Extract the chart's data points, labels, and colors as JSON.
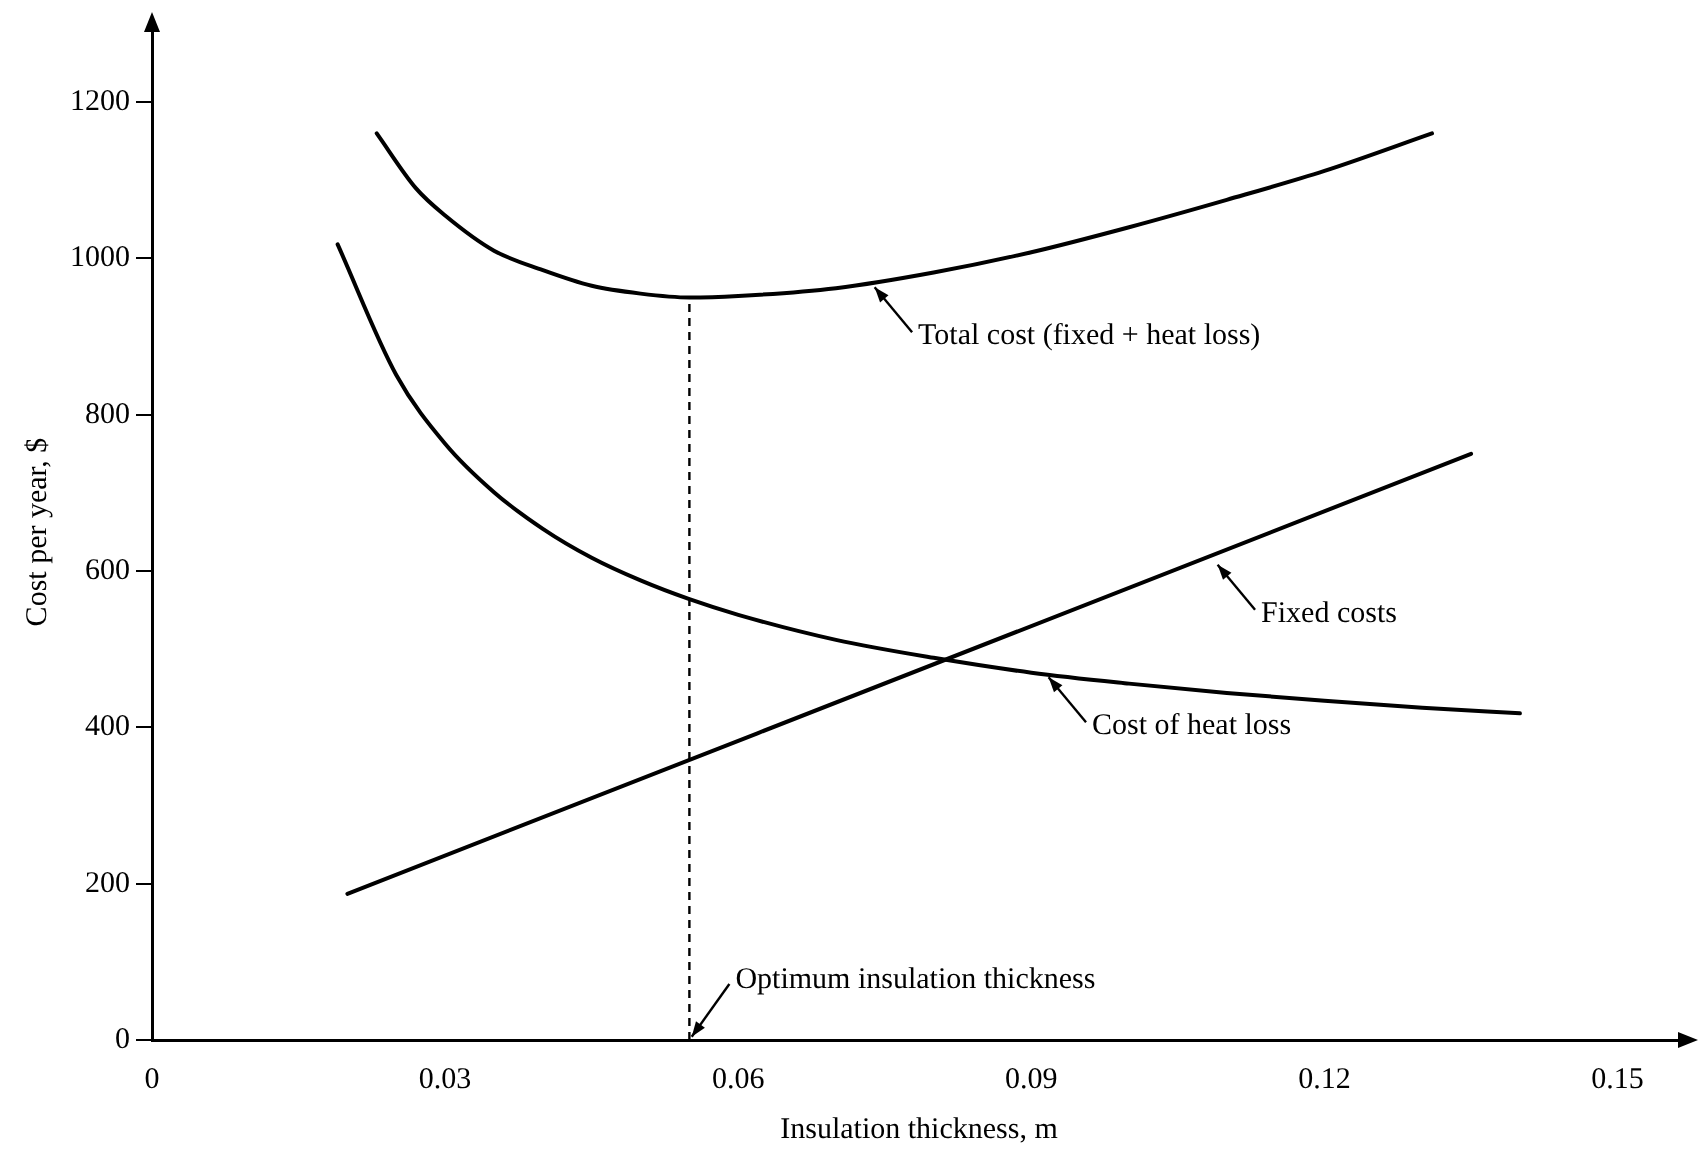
{
  "chart_data": {
    "type": "line",
    "xlabel": "Insulation thickness, m",
    "ylabel": "Cost per year, $",
    "xlim": [
      0,
      0.157
    ],
    "xticks": [
      0,
      0.03,
      0.06,
      0.09,
      0.12,
      0.15
    ],
    "ylim": [
      0,
      1300
    ],
    "yticks": [
      0,
      200,
      400,
      600,
      800,
      1000,
      1200
    ],
    "grid": false,
    "legend": false,
    "marker": "none",
    "line_style": "solid",
    "series": [
      {
        "color": "#000000",
        "x": [
          0.023,
          0.027,
          0.03,
          0.035,
          0.04,
          0.045,
          0.05,
          0.055,
          0.06,
          0.07,
          0.08,
          0.09,
          0.1,
          0.11,
          0.12,
          0.131
        ],
        "values": [
          1160,
          1090,
          1055,
          1010,
          985,
          965,
          955,
          950,
          952,
          962,
          982,
          1008,
          1040,
          1075,
          1112,
          1160
        ]
      },
      {
        "color": "#000000",
        "x": [
          0.019,
          0.025,
          0.03,
          0.035,
          0.04,
          0.045,
          0.05,
          0.055,
          0.06,
          0.07,
          0.08,
          0.09,
          0.1,
          0.11,
          0.12,
          0.13,
          0.14
        ],
        "values": [
          1018,
          851,
          763,
          701,
          654,
          617,
          588,
          564,
          544,
          512,
          489,
          470,
          456,
          444,
          434,
          425,
          418
        ]
      },
      {
        "color": "#000000",
        "x": [
          0.02,
          0.135
        ],
        "values": [
          187,
          750
        ]
      }
    ],
    "ref_lines": [
      {
        "axis": "x",
        "value": 0.055,
        "color": "#000000",
        "line_style": "dashed"
      }
    ],
    "annotations": [
      {
        "text": "Total cost (fixed + heat loss)",
        "x": 0.0737,
        "y": 967
      },
      {
        "text": "Fixed costs",
        "x": 0.1088,
        "y": 612
      },
      {
        "text": "Cost of heat loss",
        "x": 0.0915,
        "y": 468
      },
      {
        "text": "Optimum insulation thickness",
        "x": 0.055,
        "y": 0
      }
    ]
  }
}
